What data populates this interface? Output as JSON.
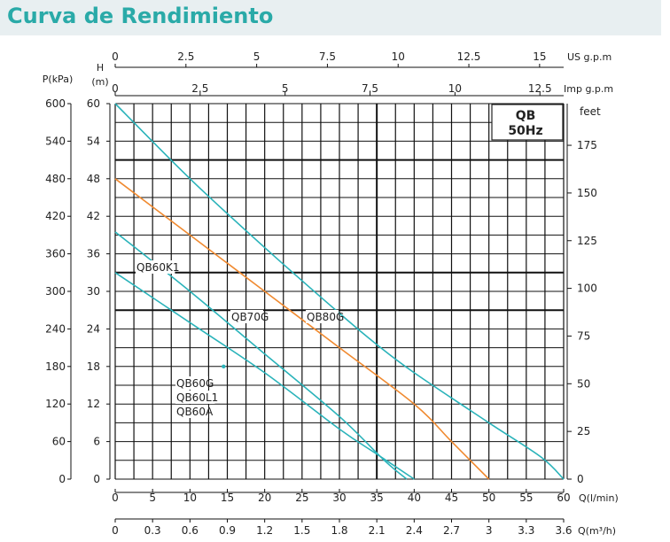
{
  "title": "Curva de Rendimiento",
  "chart_data": {
    "type": "line",
    "model_box": {
      "line1": "QB",
      "line2": "50Hz"
    },
    "axes": {
      "x_bottom_lpm": {
        "label": "Q(l/min)",
        "ticks": [
          0,
          5,
          10,
          15,
          20,
          25,
          30,
          35,
          40,
          45,
          50,
          55,
          60
        ],
        "range": [
          0,
          60
        ]
      },
      "x_bottom_m3h": {
        "label": "Q(m³/h)",
        "ticks": [
          "0",
          "0.3",
          "0.6",
          "0.9",
          "1.2",
          "1.5",
          "1.8",
          "2.1",
          "2.4",
          "2.7",
          "3",
          "3.3",
          "3.6"
        ]
      },
      "x_top_usgpm": {
        "label": "US  g.p.m",
        "ticks": [
          "0",
          "2.5",
          "5",
          "7.5",
          "10",
          "12.5",
          "15"
        ]
      },
      "x_top_impgpm": {
        "label": "Imp  g.p.m",
        "ticks": [
          "0",
          "2.5",
          "5",
          "7.5",
          "10",
          "12.5"
        ]
      },
      "y_left_head": {
        "label_top": "H",
        "label_unit": "(m)",
        "ticks": [
          0,
          6,
          12,
          18,
          24,
          30,
          36,
          42,
          48,
          54,
          60
        ],
        "range": [
          0,
          60
        ]
      },
      "y_left_pressure": {
        "label": "P(kPa)",
        "ticks": [
          0,
          60,
          120,
          180,
          240,
          300,
          360,
          420,
          480,
          540,
          600
        ]
      },
      "y_right_feet": {
        "label": "feet",
        "ticks": [
          0,
          25,
          50,
          75,
          100,
          125,
          150,
          175
        ]
      }
    },
    "series": [
      {
        "name": "QB80G",
        "color": "#2ab3ba",
        "x": [
          0,
          10,
          20,
          30,
          35,
          40,
          50,
          57,
          60
        ],
        "y": [
          60,
          48,
          37,
          26.5,
          21.5,
          17,
          9,
          3.5,
          0
        ]
      },
      {
        "name": "QB70G",
        "color": "#f08a30",
        "x": [
          0,
          10,
          20,
          30,
          40,
          45,
          50
        ],
        "y": [
          48,
          39,
          30,
          21,
          12,
          6,
          0
        ]
      },
      {
        "name": "QB60K1",
        "color": "#2ab3ba",
        "x": [
          0,
          10,
          20,
          30,
          36,
          39
        ],
        "y": [
          39.5,
          30,
          20,
          10,
          3,
          0
        ]
      },
      {
        "name": "QB60G QB60L1 QB60A",
        "color": "#2ab3ba",
        "x": [
          0,
          10,
          20,
          30,
          35,
          40
        ],
        "y": [
          33,
          25,
          17,
          8,
          4,
          0
        ]
      }
    ],
    "labels": {
      "qb80g": "QB80G",
      "qb70g": "QB70G",
      "qb60k1": "QB60K1",
      "qb60_line1": "QB60G",
      "qb60_line2": "QB60L1",
      "qb60_line3": "QB60A"
    },
    "grid": true
  }
}
